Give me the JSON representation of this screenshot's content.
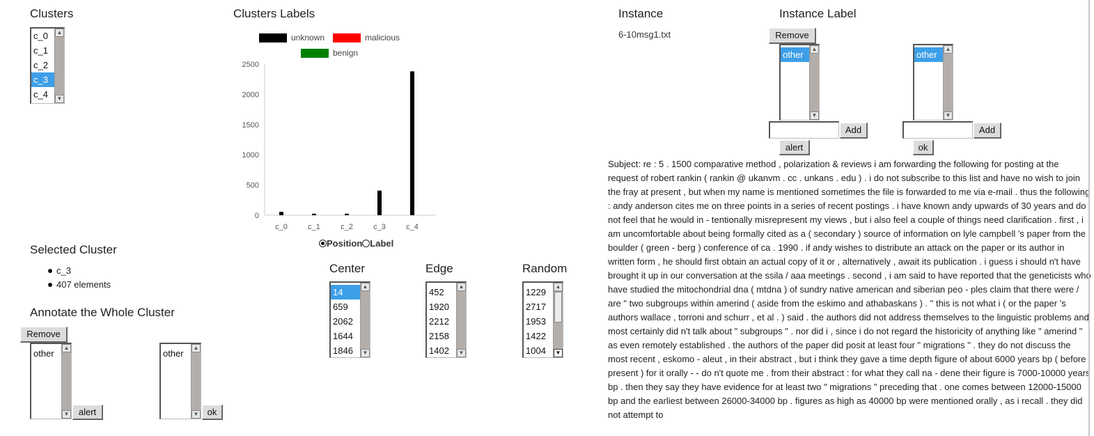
{
  "clusters": {
    "heading": "Clusters",
    "items": [
      "c_0",
      "c_1",
      "c_2",
      "c_3",
      "c_4"
    ],
    "selected_index": 3
  },
  "clusters_labels": {
    "heading": "Clusters Labels",
    "legend": [
      {
        "label": "unknown",
        "color": "#000000"
      },
      {
        "label": "malicious",
        "color": "#ff0000"
      },
      {
        "label": "benign",
        "color": "#008000"
      }
    ],
    "radio_position": "Position",
    "radio_label": "Label",
    "selected_radio": "Position"
  },
  "chart_data": {
    "type": "bar",
    "categories": [
      "c_0",
      "c_1",
      "c_2",
      "c_3",
      "c_4"
    ],
    "series": [
      {
        "name": "unknown",
        "color": "#000000",
        "values": [
          55,
          25,
          25,
          407,
          2380
        ]
      }
    ],
    "y_ticks": [
      "0",
      "500",
      "1000",
      "1500",
      "2000",
      "2500"
    ],
    "ylim": [
      0,
      2500
    ],
    "grid": false,
    "legend_position": "top"
  },
  "selected_cluster": {
    "heading": "Selected Cluster",
    "items": [
      "c_3",
      "407 elements"
    ]
  },
  "annotate": {
    "heading": "Annotate the Whole Cluster",
    "remove_label": "Remove",
    "left_list": [
      "other"
    ],
    "right_list": [
      "other"
    ],
    "alert_label": "alert",
    "ok_label": "ok"
  },
  "center": {
    "heading": "Center",
    "items": [
      "14",
      "659",
      "2062",
      "1644",
      "1846"
    ],
    "selected_index": 0
  },
  "edge": {
    "heading": "Edge",
    "items": [
      "452",
      "1920",
      "2212",
      "2158",
      "1402"
    ]
  },
  "random": {
    "heading": "Random",
    "items": [
      "1229",
      "2717",
      "1953",
      "1422",
      "1004"
    ]
  },
  "instance": {
    "heading": "Instance",
    "filename": "6-10msg1.txt"
  },
  "instance_label": {
    "heading": "Instance Label",
    "remove_label": "Remove",
    "left_list": [
      "other"
    ],
    "right_list": [
      "other"
    ],
    "add_label": "Add",
    "alert_label": "alert",
    "ok_label": "ok"
  },
  "document": {
    "text": "Subject: re : 5 . 1500 comparative method , polarization & reviews i am forwarding the following for posting at the request of robert rankin ( rankin @ ukanvm . cc . unkans . edu ) . i do not subscribe to this list and have no wish to join the fray at present , but when my name is mentioned sometimes the file is forwarded to me via e-mail . thus the following : andy anderson cites me on three points in a series of recent postings . i have known andy upwards of 30 years and do not feel that he would in - tentionally misrepresent my views , but i also feel a couple of things need clarification . first , i am uncomfortable about being formally cited as a ( secondary ) source of information on lyle campbell 's paper from the boulder ( green - berg ) conference of ca . 1990 . if andy wishes to distribute an attack on the paper or its author in written form , he should first obtain an actual copy of it or , alternatively , await its publication . i guess i should n't have brought it up in our conversation at the ssila / aaa meetings . second , i am said to have reported that the geneticists who have studied the mitochondrial dna ( mtdna ) of sundry native american and siberian peo - ples claim that there were / are \" two subgroups within amerind ( aside from the eskimo and athabaskans ) . \" this is not what i ( or the paper 's authors wallace , torroni and schurr , et al . ) said . the authors did not address themselves to the linguistic problems and most certainly did n't talk about \" subgroups \" . nor did i , since i do not regard the historicity of anything like \" amerind \" as even remotely established . the authors of the paper did posit at least four \" migrations \" . they do not discuss the most recent , eskomo - aleut , in their abstract , but i think they gave a time depth figure of about 6000 years bp ( before present ) for it orally - - do n't quote me . from their abstract : for what they call na - dene their figure is 7000-10000 years bp . then they say they have evidence for at least two \" migrations \" preceding that . one comes between 12000-15000 bp and the earliest between 26000-34000 bp . figures as high as 40000 bp were mentioned orally , as i recall . they did not attempt to"
  }
}
